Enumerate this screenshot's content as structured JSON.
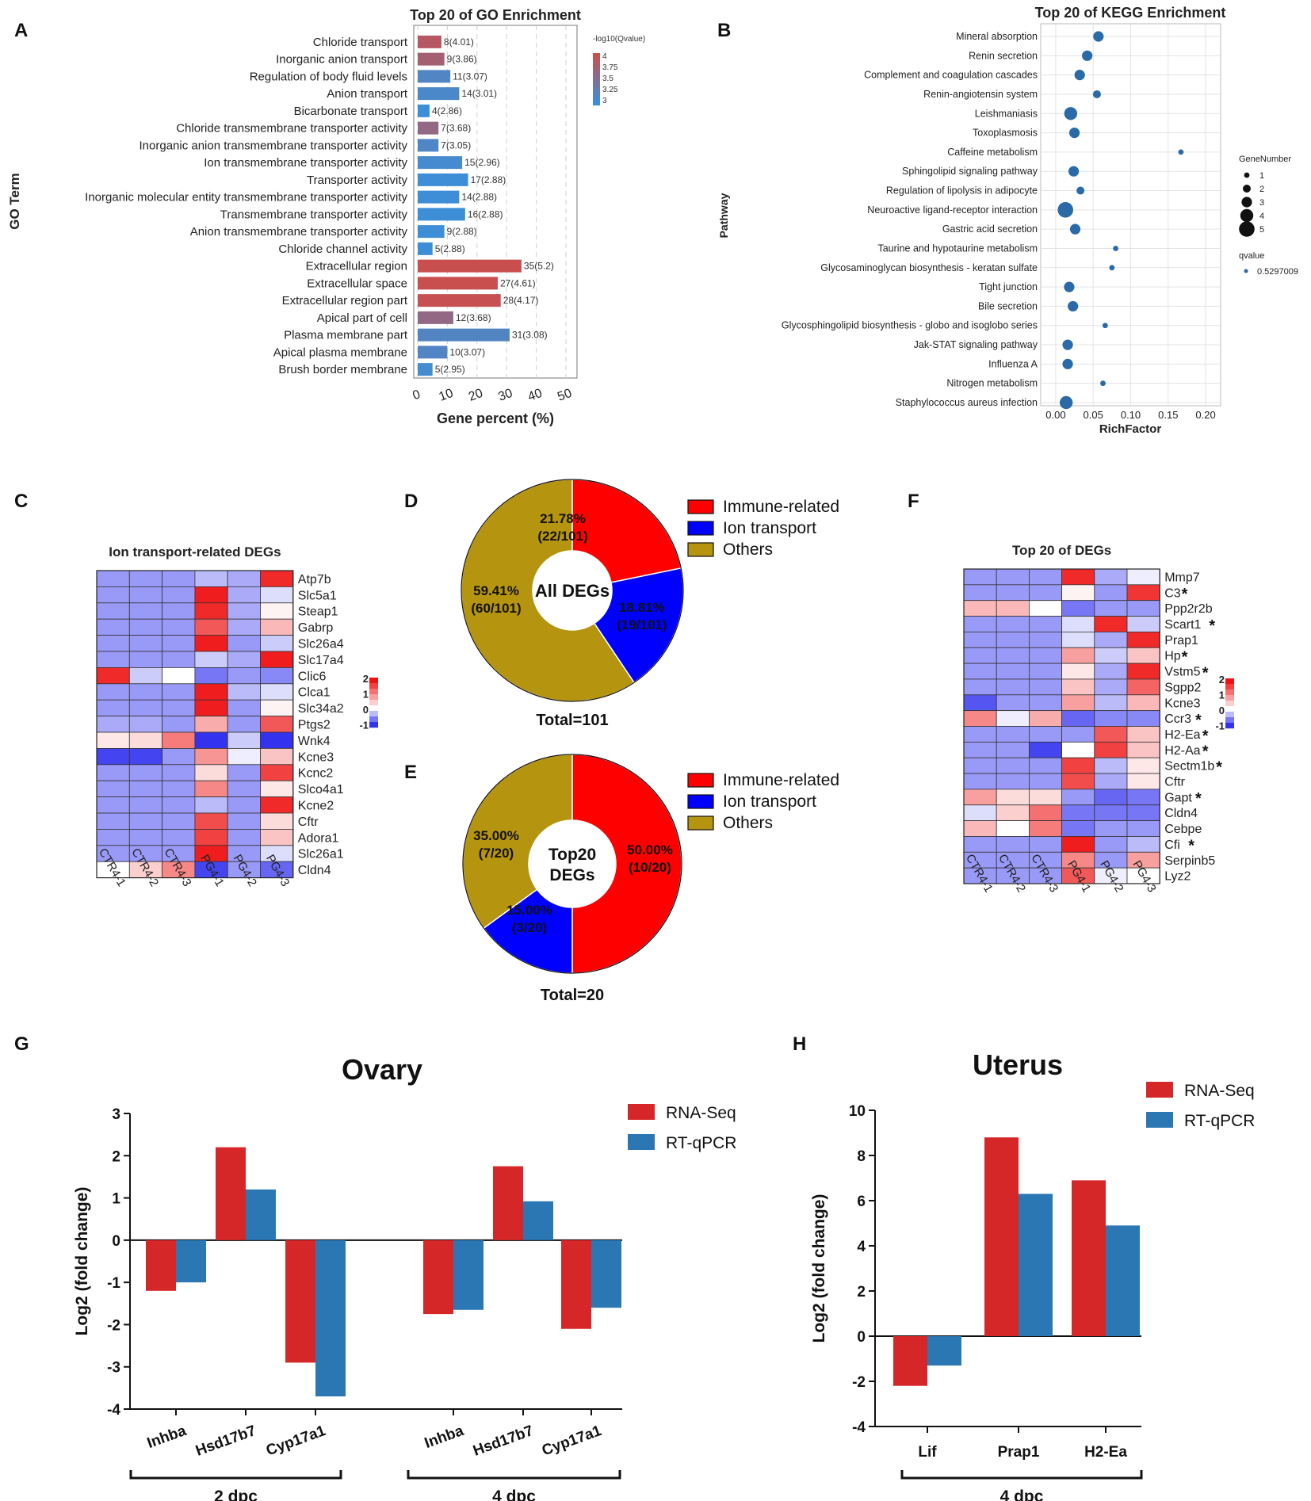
{
  "panel_letters": [
    "A",
    "B",
    "C",
    "D",
    "E",
    "F",
    "G",
    "H"
  ],
  "colors": {
    "go_low": "#3b8fd9",
    "go_high": "#c94f4f",
    "kegg_dot": "#2a6aa6",
    "heat_low": "#2222ee",
    "heat_mid": "#ffffff",
    "heat_high": "#ee1111",
    "immune": "#ff0000",
    "ion": "#0000ff",
    "others": "#b59410",
    "rnaseq": "#d62728",
    "qpcr": "#2b77b3"
  },
  "chart_data": [
    {
      "id": "A",
      "type": "bar",
      "orientation": "horizontal",
      "title": "Top 20 of GO Enrichment",
      "xlabel": "Gene percent (%)",
      "ylabel": "GO Term",
      "xlim": [
        0,
        55
      ],
      "xticks": [
        0,
        10,
        20,
        30,
        40,
        50
      ],
      "legend_title": "-log10(Qvalue)",
      "legend_ticks": [
        "4",
        "3.75",
        "3.5",
        "3.25",
        "3"
      ],
      "categories": [
        "Chloride transport",
        "Inorganic anion transport",
        "Regulation of body fluid levels",
        "Anion transport",
        "Bicarbonate transport",
        "Chloride transmembrane transporter activity",
        "Inorganic anion transmembrane transporter activity",
        "Ion transmembrane transporter activity",
        "Transporter activity",
        "Inorganic molecular entity transmembrane transporter activity",
        "Transmembrane transporter activity",
        "Anion transmembrane transporter activity",
        "Chloride channel activity",
        "Extracellular region",
        "Extracellular space",
        "Extracellular region part",
        "Apical part of cell",
        "Plasma membrane part",
        "Apical plasma membrane",
        "Brush border membrane"
      ],
      "values": [
        8,
        9,
        11,
        14,
        4,
        7,
        7,
        15,
        17,
        14,
        16,
        9,
        5,
        35,
        27,
        28,
        12,
        31,
        10,
        5
      ],
      "qvalue_log": [
        4.01,
        3.86,
        3.07,
        3.01,
        2.86,
        3.68,
        3.05,
        2.96,
        2.88,
        2.88,
        2.88,
        2.88,
        2.88,
        5.2,
        4.61,
        4.17,
        3.68,
        3.08,
        3.07,
        2.95
      ],
      "labels": [
        "8(4.01)",
        "9(3.86)",
        "11(3.07)",
        "14(3.01)",
        "4(2.86)",
        "7(3.68)",
        "7(3.05)",
        "15(2.96)",
        "17(2.88)",
        "14(2.88)",
        "16(2.88)",
        "9(2.88)",
        "5(2.88)",
        "35(5.2)",
        "27(4.61)",
        "28(4.17)",
        "12(3.68)",
        "31(3.08)",
        "10(3.07)",
        "5(2.95)"
      ]
    },
    {
      "id": "B",
      "type": "scatter",
      "title": "Top 20 of KEGG Enrichment",
      "xlabel": "RichFactor",
      "ylabel": "Pathway",
      "xlim": [
        -0.02,
        0.22
      ],
      "xticks": [
        0.0,
        0.05,
        0.1,
        0.15,
        0.2
      ],
      "xtick_labels": [
        "0.00",
        "0.05",
        "0.10",
        "0.15",
        "0.20"
      ],
      "legend_size_title": "GeneNumber",
      "legend_sizes": [
        1,
        2,
        3,
        4,
        5
      ],
      "legend_color_title": "qvalue",
      "legend_color_value": "0.5297009",
      "categories": [
        "Mineral absorption",
        "Renin secretion",
        "Complement and coagulation cascades",
        "Renin-angiotensin system",
        "Leishmaniasis",
        "Toxoplasmosis",
        "Caffeine metabolism",
        "Sphingolipid signaling pathway",
        "Regulation of lipolysis in adipocyte",
        "Neuroactive ligand-receptor interaction",
        "Gastric acid secretion",
        "Taurine and hypotaurine metabolism",
        "Glycosaminoglycan biosynthesis - keratan sulfate",
        "Tight junction",
        "Bile secretion",
        "Glycosphingolipid biosynthesis - globo and isoglobo series",
        "Jak-STAT signaling pathway",
        "Influenza A",
        "Nitrogen metabolism",
        "Staphylococcus aureus infection"
      ],
      "x": [
        0.057,
        0.042,
        0.032,
        0.055,
        0.02,
        0.025,
        0.167,
        0.024,
        0.033,
        0.013,
        0.026,
        0.08,
        0.075,
        0.018,
        0.023,
        0.066,
        0.016,
        0.016,
        0.063,
        0.014
      ],
      "sizes": [
        3,
        3,
        3,
        2,
        4,
        3,
        1,
        3,
        2,
        5,
        3,
        1,
        1,
        3,
        3,
        1,
        3,
        3,
        1,
        4
      ]
    },
    {
      "id": "C",
      "type": "heatmap",
      "title": "Ion transport-related DEGs",
      "columns": [
        "CTR4-1",
        "CTR4-2",
        "CTR4-3",
        "PG4-1",
        "PG4-2",
        "PG4-3"
      ],
      "rows": [
        "Atp7b",
        "Slc5a1",
        "Steap1",
        "Gabrp",
        "Slc26a4",
        "Slc17a4",
        "Clic6",
        "Clca1",
        "Slc34a2",
        "Ptgs2",
        "Wnk4",
        "Kcne3",
        "Kcnc2",
        "Slco4a1",
        "Kcne2",
        "Cftr",
        "Adora1",
        "Slc26a1",
        "Cldn4"
      ],
      "scale_ticks": [
        "2",
        "1",
        "0",
        "-1"
      ],
      "values": [
        [
          -0.6,
          -0.6,
          -0.6,
          -0.4,
          -0.5,
          1.8
        ],
        [
          -0.6,
          -0.6,
          -0.6,
          1.9,
          -0.5,
          -0.2
        ],
        [
          -0.6,
          -0.6,
          -0.6,
          1.8,
          -0.5,
          0.1
        ],
        [
          -0.6,
          -0.6,
          -0.6,
          1.4,
          -0.5,
          0.6
        ],
        [
          -0.6,
          -0.6,
          -0.6,
          1.9,
          -0.6,
          -0.3
        ],
        [
          -0.6,
          -0.6,
          -0.6,
          -0.3,
          -0.5,
          1.9
        ],
        [
          1.8,
          -0.3,
          0.0,
          -0.8,
          -0.6,
          -0.7
        ],
        [
          -0.6,
          -0.6,
          -0.6,
          1.9,
          -0.4,
          -0.2
        ],
        [
          -0.6,
          -0.6,
          -0.6,
          1.9,
          -0.6,
          0.1
        ],
        [
          -0.5,
          -0.5,
          -0.6,
          0.7,
          -0.6,
          1.4
        ],
        [
          0.2,
          0.3,
          1.1,
          -1.2,
          -0.3,
          -1.2
        ],
        [
          -1.1,
          -1.1,
          -0.6,
          0.9,
          -0.1,
          0.5
        ],
        [
          -0.6,
          -0.6,
          -0.6,
          0.3,
          -0.6,
          1.6
        ],
        [
          -0.6,
          -0.6,
          -0.6,
          1.0,
          -0.6,
          0.2
        ],
        [
          -0.6,
          -0.6,
          -0.6,
          -0.4,
          -0.6,
          1.8
        ],
        [
          -0.6,
          -0.6,
          -0.6,
          1.5,
          -0.6,
          0.3
        ],
        [
          -0.6,
          -0.6,
          -0.6,
          1.6,
          -0.6,
          0.5
        ],
        [
          -0.6,
          -0.6,
          -0.6,
          1.9,
          -0.6,
          -0.2
        ],
        [
          0.0,
          0.4,
          1.0,
          -1.1,
          -0.6,
          -0.9
        ]
      ]
    },
    {
      "id": "D",
      "type": "pie",
      "style": "donut",
      "center_label": "All DEGs",
      "footer": "Total=101",
      "legend": [
        "Immune-related",
        "Ion transport",
        "Others"
      ],
      "values": [
        22,
        19,
        60
      ],
      "pct_labels": [
        "21.78%",
        "18.81%",
        "59.41%"
      ],
      "count_labels": [
        "(22/101)",
        "(19/101)",
        "(60/101)"
      ]
    },
    {
      "id": "E",
      "type": "pie",
      "style": "donut",
      "center_label_1": "Top20",
      "center_label_2": "DEGs",
      "footer": "Total=20",
      "legend": [
        "Immune-related",
        "Ion transport",
        "Others"
      ],
      "values": [
        10,
        3,
        7
      ],
      "pct_labels": [
        "50.00%",
        "15.00%",
        "35.00%"
      ],
      "count_labels": [
        "(10/20)",
        "(3/20)",
        "(7/20)"
      ]
    },
    {
      "id": "F",
      "type": "heatmap",
      "title": "Top 20 of DEGs",
      "columns": [
        "CTR4-1",
        "CTR4-2",
        "CTR4-3",
        "PG4-1",
        "PG4-2",
        "PG4-3"
      ],
      "rows": [
        "Mmp7",
        "C3",
        "Ppp2r2b",
        "Scart1",
        "Prap1",
        "Hp",
        "Vstm5",
        "Sgpp2",
        "Kcne3",
        "Ccr3",
        "H2-Ea",
        "H2-Aa",
        "Sectm1b",
        "Cftr",
        "Gapt",
        "Cldn4",
        "Cebpe",
        "Cfi",
        "Serpinb5",
        "Lyz2"
      ],
      "starred": [
        false,
        true,
        false,
        true,
        false,
        true,
        true,
        false,
        false,
        true,
        true,
        true,
        true,
        false,
        true,
        false,
        false,
        true,
        false,
        false
      ],
      "scale_ticks": [
        "2",
        "1",
        "0",
        "-1"
      ],
      "values": [
        [
          -0.6,
          -0.6,
          -0.6,
          1.8,
          -0.5,
          -0.1
        ],
        [
          -0.6,
          -0.6,
          -0.6,
          0.1,
          -0.6,
          1.7
        ],
        [
          0.6,
          0.6,
          0.0,
          -0.8,
          -0.6,
          -0.6
        ],
        [
          -0.6,
          -0.6,
          -0.6,
          -0.2,
          1.8,
          -0.3
        ],
        [
          -0.6,
          -0.6,
          -0.6,
          -0.2,
          -0.5,
          1.8
        ],
        [
          -0.6,
          -0.6,
          -0.6,
          0.8,
          -0.3,
          0.5
        ],
        [
          -0.6,
          -0.6,
          -0.6,
          0.2,
          -0.5,
          1.8
        ],
        [
          -0.6,
          -0.6,
          -0.6,
          0.5,
          -0.5,
          1.3
        ],
        [
          -1.0,
          -0.6,
          -0.6,
          0.8,
          -0.4,
          0.6
        ],
        [
          1.0,
          -0.1,
          0.7,
          -0.9,
          -0.7,
          -0.7
        ],
        [
          -0.6,
          -0.6,
          -0.6,
          -0.6,
          1.4,
          0.5
        ],
        [
          -0.6,
          -0.6,
          -1.1,
          0.0,
          1.6,
          0.5
        ],
        [
          -0.6,
          -0.6,
          -0.6,
          1.6,
          -0.4,
          0.2
        ],
        [
          -0.6,
          -0.6,
          -0.6,
          1.5,
          -0.5,
          0.2
        ],
        [
          0.8,
          0.3,
          0.3,
          -0.6,
          -0.9,
          -0.8
        ],
        [
          -0.2,
          0.4,
          1.2,
          -0.8,
          -0.8,
          -0.8
        ],
        [
          0.6,
          0.0,
          1.1,
          -0.8,
          -0.6,
          -0.6
        ],
        [
          -0.6,
          -0.6,
          -0.6,
          1.9,
          -0.6,
          -0.4
        ],
        [
          -0.6,
          -0.6,
          -0.6,
          1.0,
          -0.6,
          0.8
        ],
        [
          -0.6,
          -0.6,
          -0.6,
          1.4,
          -0.1,
          0.0
        ]
      ]
    },
    {
      "id": "G",
      "type": "bar",
      "title": "Ovary",
      "ylabel": "Log2 (fold change)",
      "ylim": [
        -4,
        3
      ],
      "yticks": [
        3,
        2,
        1,
        0,
        -1,
        -2,
        -3,
        -4
      ],
      "legend": [
        "RNA-Seq",
        "RT-qPCR"
      ],
      "groups": [
        "2 dpc",
        "4 dpc"
      ],
      "categories": [
        "Inhba",
        "Hsd17b7",
        "Cyp17a1",
        "Inhba",
        "Hsd17b7",
        "Cyp17a1"
      ],
      "series": [
        {
          "name": "RNA-Seq",
          "values": [
            -1.2,
            2.2,
            -2.9,
            -1.75,
            1.75,
            -2.1
          ]
        },
        {
          "name": "RT-qPCR",
          "values": [
            -1.0,
            1.2,
            -3.7,
            -1.65,
            0.92,
            -1.6
          ]
        }
      ]
    },
    {
      "id": "H",
      "type": "bar",
      "title": "Uterus",
      "ylabel": "Log2 (fold change)",
      "ylim": [
        -4,
        10
      ],
      "yticks": [
        10,
        8,
        6,
        4,
        2,
        0,
        -2,
        -4
      ],
      "legend": [
        "RNA-Seq",
        "RT-qPCR"
      ],
      "groups": [
        "4 dpc"
      ],
      "categories": [
        "Lif",
        "Prap1",
        "H2-Ea"
      ],
      "series": [
        {
          "name": "RNA-Seq",
          "values": [
            -2.2,
            8.8,
            6.9
          ]
        },
        {
          "name": "RT-qPCR",
          "values": [
            -1.3,
            6.3,
            4.9
          ]
        }
      ]
    }
  ]
}
